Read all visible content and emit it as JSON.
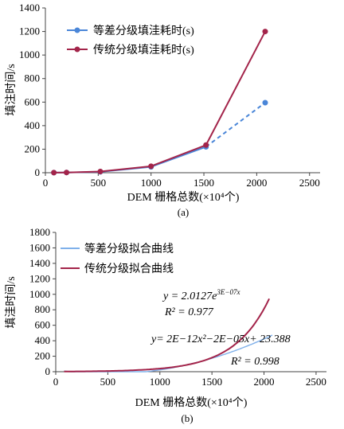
{
  "chart_data": [
    {
      "type": "line",
      "panel_label": "(a)",
      "xlabel": "DEM 栅格总数(×10⁴个)",
      "ylabel": "填注时间/s",
      "xlim": [
        0,
        2600
      ],
      "ylim": [
        0,
        1400
      ],
      "xticks": [
        0,
        500,
        1000,
        1500,
        2000,
        2500
      ],
      "yticks": [
        0,
        200,
        400,
        600,
        800,
        1000,
        1200,
        1400
      ],
      "grid": false,
      "legend": "top-left",
      "series": [
        {
          "name": "等差分级填洼耗时(s)",
          "color": "#4a86d8",
          "dashed_segment_from_index": 5,
          "x": [
            80,
            200,
            520,
            1000,
            1520,
            2080
          ],
          "y": [
            1,
            2,
            8,
            50,
            220,
            595
          ]
        },
        {
          "name": "传统分级填洼耗时(s)",
          "color": "#a3244a",
          "x": [
            80,
            200,
            520,
            1000,
            1520,
            2080
          ],
          "y": [
            1,
            2,
            10,
            55,
            235,
            1200
          ]
        }
      ]
    },
    {
      "type": "line",
      "panel_label": "(b)",
      "xlabel": "DEM 栅格总数(×10⁴个)",
      "ylabel": "填洼时间/s",
      "xlim": [
        0,
        2600
      ],
      "ylim": [
        0,
        1800
      ],
      "xticks": [
        0,
        500,
        1000,
        1500,
        2000,
        2500
      ],
      "yticks": [
        0,
        200,
        400,
        600,
        800,
        1000,
        1200,
        1400,
        1600,
        1800
      ],
      "grid": false,
      "legend": "top-left",
      "series": [
        {
          "name": "等差分级拟合曲线",
          "color": "#7fb0ea",
          "fit": "poly2",
          "coefficients": {
            "a": 2e-12,
            "b": -2e-05,
            "c": 23.388
          },
          "x_range": [
            80,
            2080
          ]
        },
        {
          "name": "传统分级拟合曲线",
          "color": "#a3244a",
          "fit": "exp",
          "coefficients": {
            "a": 2.0127,
            "b": 3e-07
          },
          "x_range": [
            80,
            2050
          ]
        }
      ],
      "annotations": {
        "exp_eq_a": "y = 2.0127e",
        "exp_eq_sup": "3E−07x",
        "exp_r2": "R² = 0.977",
        "poly_eq": "y= 2E−12x²−2E−05x+ 23.388",
        "poly_r2": "R² = 0.998"
      }
    }
  ]
}
